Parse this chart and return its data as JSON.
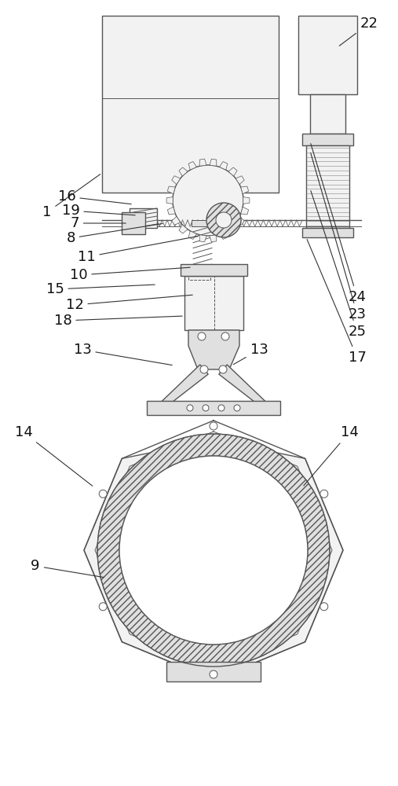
{
  "fig_width": 5.07,
  "fig_height": 10.0,
  "dpi": 100,
  "bg_color": "#ffffff",
  "lc": "#555555",
  "lc_light": "#888888",
  "fc_light": "#f2f2f2",
  "fc_mid": "#e0e0e0",
  "fc_dark": "#c8c8c8"
}
